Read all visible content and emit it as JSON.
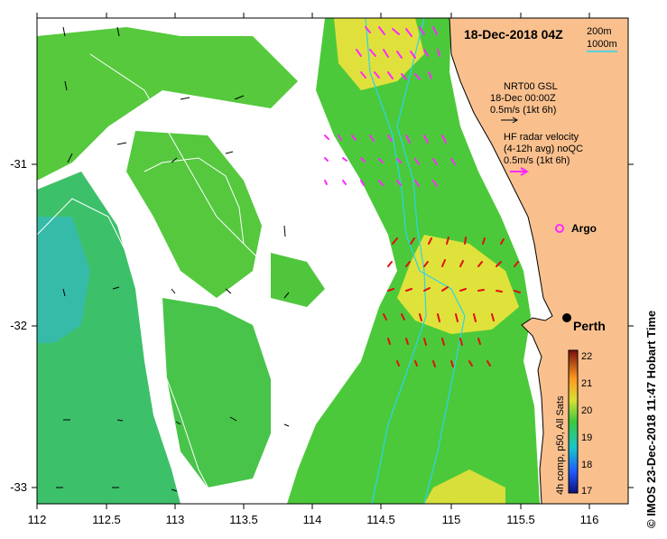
{
  "map": {
    "date_label": "18-Dec-2018 04Z",
    "depth_legend": [
      "200m",
      "1000m"
    ],
    "wind_legend": [
      "NRT00 GSL",
      "18-Dec 00:00Z",
      "0.5m/s (1kt 6h)"
    ],
    "radar_legend": [
      "HF radar velocity",
      "(4-12h avg) noQC",
      "0.5m/s (1kt 6h)"
    ],
    "argo_label": "Argo",
    "city_label": "Perth",
    "x_ticks": [
      "112",
      "112.5",
      "113",
      "113.5",
      "114",
      "114.5",
      "115",
      "115.5",
      "116"
    ],
    "y_ticks": [
      "-31",
      "-32",
      "-33"
    ],
    "colorbar": {
      "ticks": [
        "22",
        "21",
        "20",
        "19",
        "18",
        "17"
      ],
      "label": "4h comp, p50, All Sats"
    },
    "credit": "©  IMOS 23-Dec-2018 11:47 Hobart Time",
    "colors": {
      "land": "#f9c08e",
      "ocean_green": "#45c83c",
      "ocean_yellow": "#e8e83a",
      "ocean_cyan": "#3cc8b4",
      "radar_north": "#ff28ff",
      "radar_south": "#e01010",
      "isobath_200": "#2ad4ee",
      "isobath_1000": "#ffffff"
    }
  }
}
